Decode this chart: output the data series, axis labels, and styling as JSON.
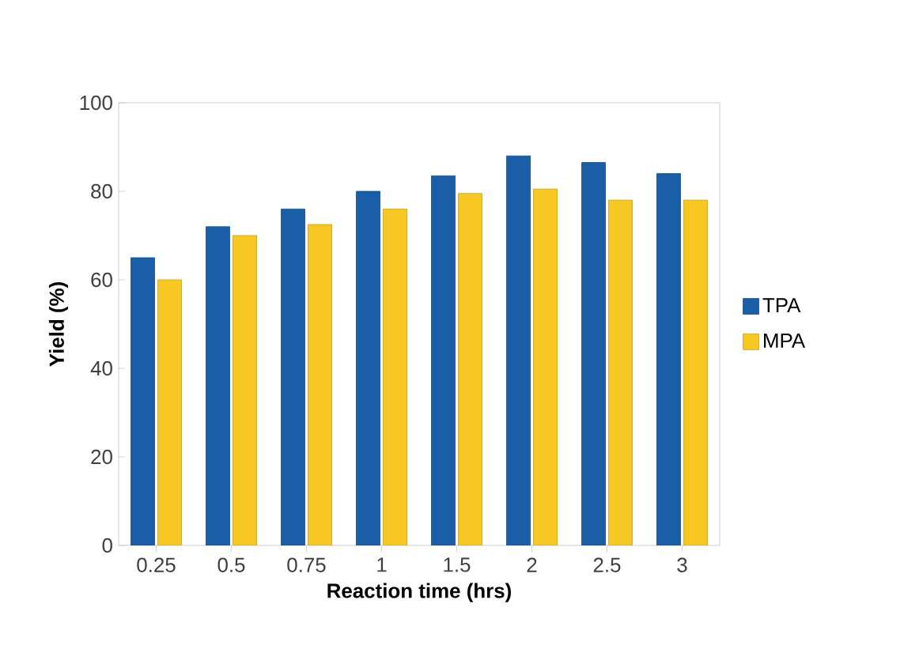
{
  "chart_data": {
    "type": "bar",
    "xlabel": "Reaction time (hrs)",
    "ylabel": "Yield (%)",
    "categories": [
      "0.25",
      "0.5",
      "0.75",
      "1",
      "1.5",
      "2",
      "2.5",
      "3"
    ],
    "series": [
      {
        "name": "TPA",
        "color": "#1a5ea8",
        "values": [
          65,
          72,
          76,
          80,
          83.5,
          88,
          86.5,
          84
        ]
      },
      {
        "name": "MPA",
        "color": "#f7c824",
        "values": [
          60,
          70,
          72.5,
          76,
          79.5,
          80.5,
          78,
          78
        ]
      }
    ],
    "ylim": [
      0,
      100
    ],
    "yticks": [
      0,
      20,
      40,
      60,
      80,
      100
    ],
    "legend": "right",
    "grid": false
  }
}
